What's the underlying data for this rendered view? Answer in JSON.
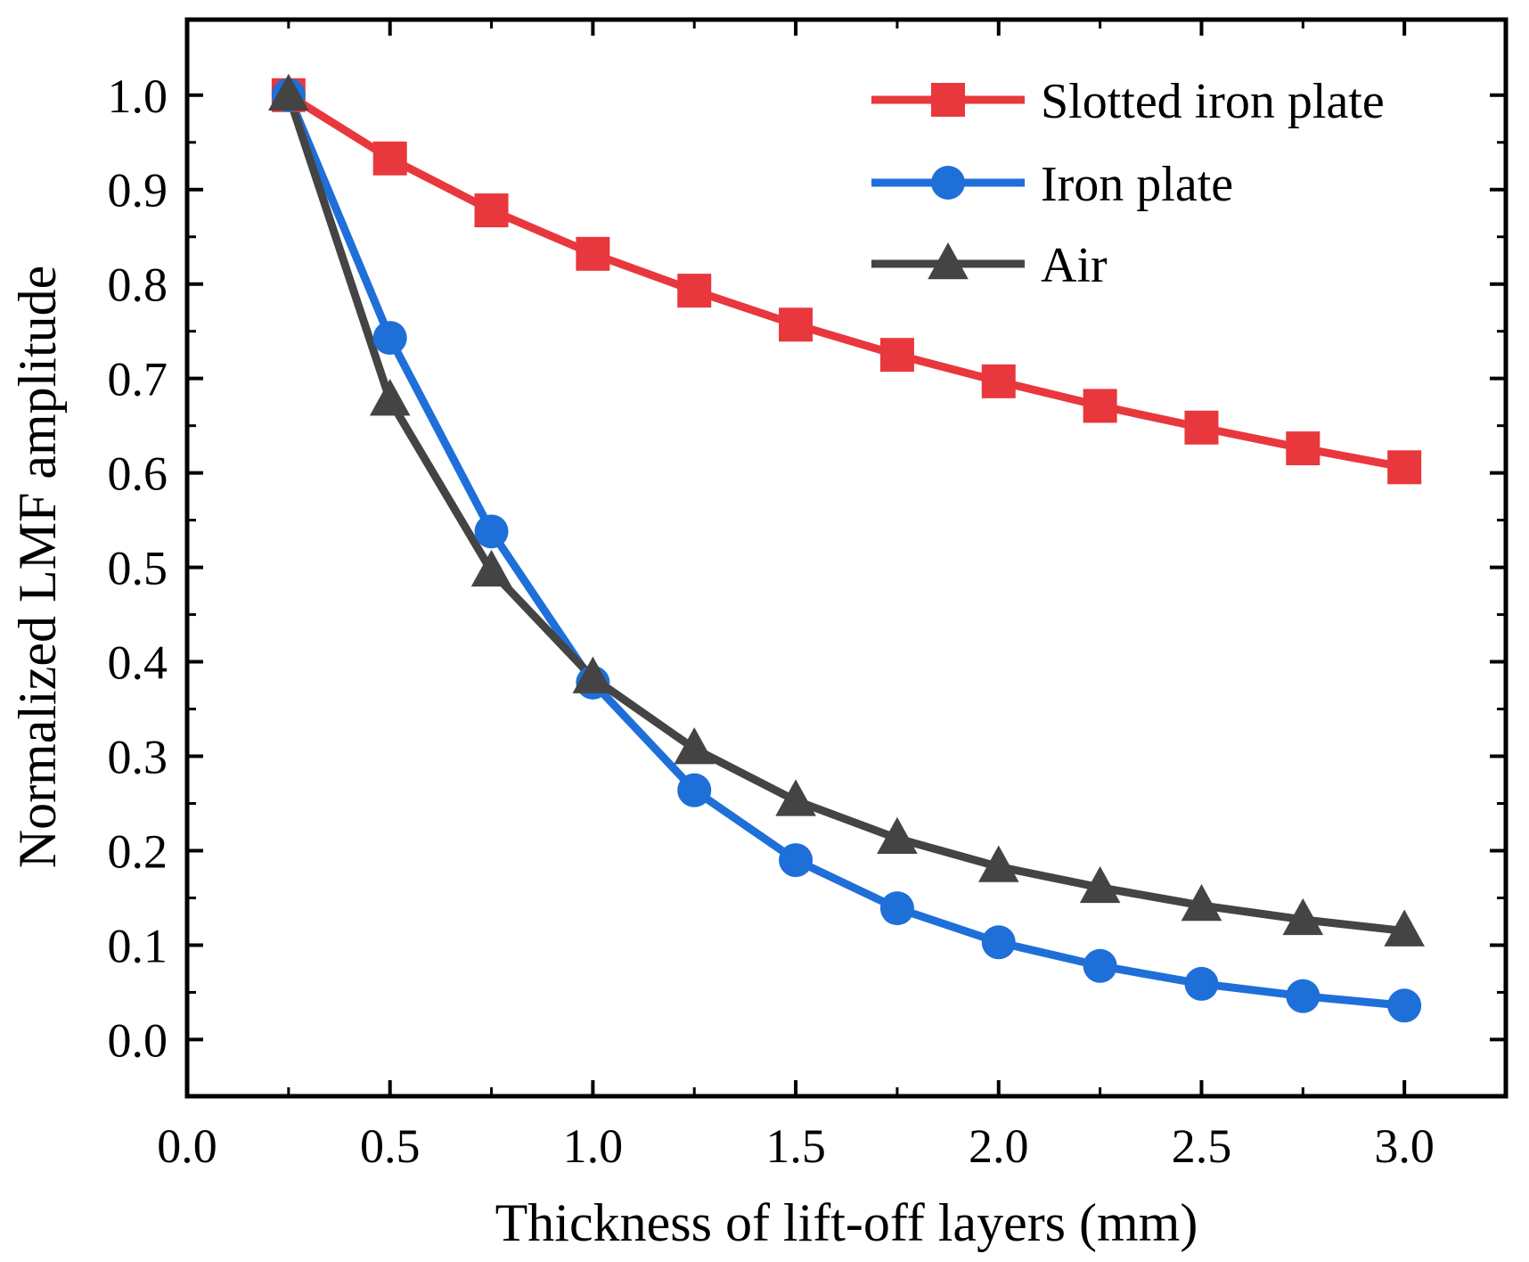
{
  "chart_data": {
    "type": "line",
    "title": "",
    "xlabel": "Thickness of lift-off layers (mm)",
    "ylabel": "Normalized LMF amplitude",
    "xlim": [
      0.0,
      3.25
    ],
    "ylim": [
      -0.06,
      1.08
    ],
    "xticks": [
      "0.0",
      "0.5",
      "1.0",
      "1.5",
      "2.0",
      "2.5",
      "3.0"
    ],
    "yticks": [
      "0.0",
      "0.1",
      "0.2",
      "0.3",
      "0.4",
      "0.5",
      "0.6",
      "0.7",
      "0.8",
      "0.9",
      "1.0"
    ],
    "grid": false,
    "legend_position": "top-right",
    "x": [
      0.25,
      0.5,
      0.75,
      1.0,
      1.25,
      1.5,
      1.75,
      2.0,
      2.25,
      2.5,
      2.75,
      3.0
    ],
    "series": [
      {
        "name": "Slotted iron plate",
        "color": "#e8383d",
        "marker": "square",
        "values": [
          1.0,
          0.933,
          0.878,
          0.832,
          0.793,
          0.757,
          0.725,
          0.697,
          0.671,
          0.648,
          0.626,
          0.606
        ]
      },
      {
        "name": "Iron plate",
        "color": "#1f6fd9",
        "marker": "circle",
        "values": [
          1.0,
          0.743,
          0.538,
          0.378,
          0.264,
          0.19,
          0.139,
          0.103,
          0.078,
          0.059,
          0.046,
          0.036
        ]
      },
      {
        "name": "Air",
        "color": "#444444",
        "marker": "triangle",
        "values": [
          1.0,
          0.677,
          0.496,
          0.383,
          0.308,
          0.253,
          0.213,
          0.183,
          0.161,
          0.142,
          0.127,
          0.115
        ]
      }
    ]
  }
}
